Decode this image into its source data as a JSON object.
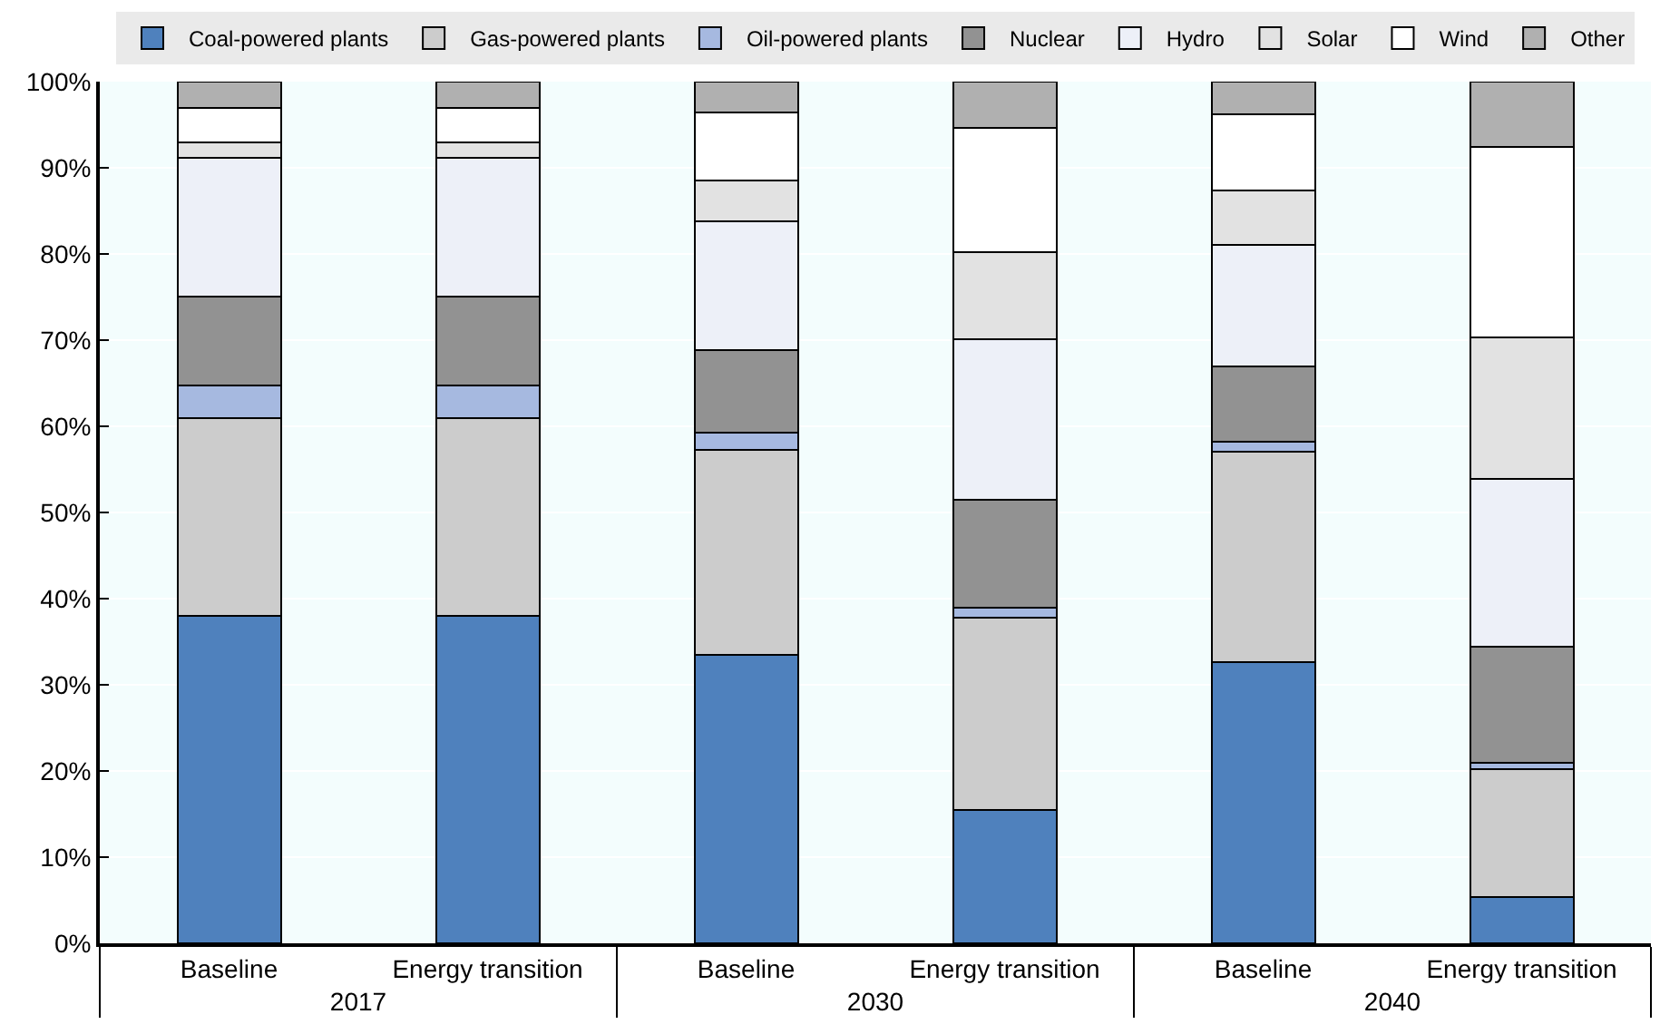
{
  "chart_data": {
    "type": "bar",
    "stacked": true,
    "categories": [
      "Baseline",
      "Energy transition",
      "Baseline",
      "Energy transition",
      "Baseline",
      "Energy transition"
    ],
    "annotations": [
      "2017",
      "2030",
      "2040"
    ],
    "series": [
      {
        "name": "Coal-powered plants",
        "color": "#4f81bd",
        "values": [
          38.0,
          38.0,
          33.5,
          15.5,
          32.6,
          5.4
        ]
      },
      {
        "name": "Gas-powered plants",
        "color": "#cccccc",
        "values": [
          23.0,
          23.0,
          23.8,
          22.3,
          24.5,
          14.8
        ]
      },
      {
        "name": "Oil-powered plants",
        "color": "#a6b9e0",
        "values": [
          3.7,
          3.7,
          2.0,
          1.1,
          1.1,
          0.7
        ]
      },
      {
        "name": "Nuclear",
        "color": "#929292",
        "values": [
          10.4,
          10.4,
          9.5,
          12.6,
          8.8,
          13.5
        ]
      },
      {
        "name": "Hydro",
        "color": "#edf0f8",
        "values": [
          16.1,
          16.1,
          15.0,
          18.6,
          14.1,
          19.5
        ]
      },
      {
        "name": "Solar",
        "color": "#e2e2e2",
        "values": [
          1.8,
          1.8,
          4.7,
          10.1,
          6.3,
          16.4
        ]
      },
      {
        "name": "Wind",
        "color": "#ffffff",
        "values": [
          4.0,
          4.0,
          7.9,
          14.4,
          8.8,
          22.1
        ]
      },
      {
        "name": "Other",
        "color": "#b0b0b0",
        "values": [
          3.0,
          3.0,
          3.6,
          5.4,
          3.8,
          7.6
        ]
      }
    ],
    "ylim": [
      0,
      100
    ],
    "yticks": [
      {
        "value": 0,
        "label": "0%"
      },
      {
        "value": 10,
        "label": "10%"
      },
      {
        "value": 20,
        "label": "20%"
      },
      {
        "value": 30,
        "label": "30%"
      },
      {
        "value": 40,
        "label": "40%"
      },
      {
        "value": 50,
        "label": "50%"
      },
      {
        "value": 60,
        "label": "60%"
      },
      {
        "value": 70,
        "label": "70%"
      },
      {
        "value": 80,
        "label": "80%"
      },
      {
        "value": 90,
        "label": "90%"
      },
      {
        "value": 100,
        "label": "100%"
      }
    ],
    "grid": "y",
    "legend": "top"
  }
}
